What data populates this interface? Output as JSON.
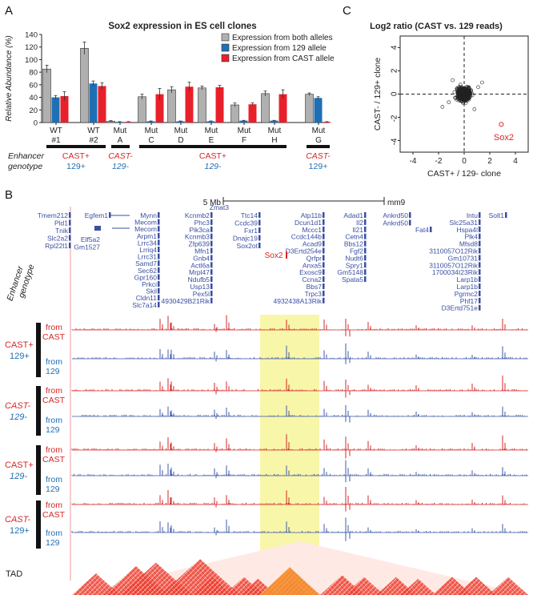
{
  "panel_labels": {
    "a": "A",
    "b": "B",
    "c": "C"
  },
  "colors": {
    "both": "#b0b0b0",
    "allele129": "#1f6fb4",
    "cast": "#e8202a",
    "track_cast": "#d62728",
    "track_129": "#3f5aa8",
    "gene_blue": "#3a4fa0",
    "sox2": "#d62728",
    "highlight": "#f7f49a"
  },
  "chart_data": [
    {
      "type": "bar",
      "title": "Sox2 expression in ES cell clones",
      "ylabel": "Relative Abundance (%)",
      "ylim": [
        0,
        140
      ],
      "yticks": [
        0,
        20,
        40,
        60,
        80,
        100,
        120,
        140
      ],
      "categories": [
        {
          "label": "WT",
          "sub": "#1"
        },
        {
          "label": "WT",
          "sub": "#2"
        },
        {
          "label": "Mut",
          "sub": "A"
        },
        {
          "label": "Mut",
          "sub": "C"
        },
        {
          "label": "Mut",
          "sub": "D"
        },
        {
          "label": "Mut",
          "sub": "E"
        },
        {
          "label": "Mut",
          "sub": "F"
        },
        {
          "label": "Mut",
          "sub": "H"
        },
        {
          "label": "Mut",
          "sub": "G"
        }
      ],
      "series": [
        {
          "name": "Expression from both alleles",
          "key": "both",
          "values": [
            85,
            118,
            2,
            41,
            52,
            55,
            28,
            46,
            45
          ],
          "errors": [
            6,
            10,
            1,
            4,
            5,
            3,
            3,
            4,
            2
          ]
        },
        {
          "name": "Expression from 129 allele",
          "key": "allele129",
          "values": [
            40,
            62,
            1,
            2,
            2,
            2,
            3,
            3,
            39
          ],
          "errors": [
            3,
            4,
            0.5,
            0.5,
            0.5,
            0.5,
            0.5,
            0.5,
            2
          ]
        },
        {
          "name": "Expression from CAST allele",
          "key": "cast",
          "values": [
            42,
            58,
            1,
            45,
            57,
            56,
            29,
            45,
            1
          ],
          "errors": [
            7,
            5,
            0.5,
            9,
            7,
            3,
            2,
            7,
            0.5
          ]
        }
      ],
      "enhancer_label": [
        "Enhancer",
        "genotype"
      ],
      "genotype_groups": [
        {
          "top": "CAST+",
          "bottom": "129+",
          "italic": false
        },
        {
          "top": "CAST-",
          "bottom": "129-",
          "italic": true
        },
        {
          "top": "CAST+",
          "bottom": "129-",
          "italic_bottom": true
        },
        {
          "top": "CAST-",
          "bottom": "129+",
          "italic_top": true
        }
      ]
    },
    {
      "type": "scatter",
      "title": "Log2 ratio (CAST vs. 129 reads)",
      "xlabel": "CAST+ / 129- clone",
      "ylabel": "CAST- / 129+ clone",
      "xlim": [
        -5,
        5
      ],
      "ylim": [
        -5,
        5
      ],
      "xticks": [
        -4,
        -2,
        0,
        2,
        4
      ],
      "yticks": [
        -4,
        -2,
        0,
        2,
        4
      ],
      "highlight_point": {
        "label": "Sox2",
        "x": 2.9,
        "y": -2.6
      }
    }
  ],
  "browser": {
    "scale_label": "5 Mb",
    "assembly": "mm9",
    "sox2_label": "Sox2",
    "genes_col1": [
      "Tmem212",
      "Pld1",
      "Tnik",
      "Slc2a2",
      "Rpl22l1"
    ],
    "genes_col2": [
      "Egfem1",
      "Elf5a2",
      "Gm1527"
    ],
    "genes_col3": [
      "Mynn",
      "Mecom",
      "Mecom",
      "Arpm1",
      "Lrrc34",
      "Lrriq4",
      "Lrrc31",
      "Samd7",
      "Sec62",
      "Gpr160",
      "Prkci",
      "Skil",
      "Cldn11",
      "Slc7a14"
    ],
    "genes_col4": [
      "Kcnmb2",
      "Phc3",
      "Pik3ca",
      "Kcnmb3",
      "Zfp639",
      "Mfn1",
      "Gnb4",
      "Actl6a",
      "Mrpl47",
      "Ndufb5",
      "Usp13",
      "Pex5l",
      "4930429B21Rik"
    ],
    "genes_col5": [
      "Zmat3"
    ],
    "genes_col6": [
      "Ttc14",
      "Ccdc39",
      "Fxr1",
      "Dnajc19",
      "Sox2ot"
    ],
    "genes_col7": [
      "Atp11b",
      "Dcun1d1",
      "Mccc1",
      "Ccdc144b",
      "Acad9",
      "D3Ertd254e",
      "Qrfpr",
      "Anxa5",
      "Exosc9",
      "Ccna2",
      "Bbs7",
      "Trpc3",
      "4932438A13Rik"
    ],
    "genes_col8": [
      "Adad1",
      "Il2",
      "Il21",
      "Cetn4",
      "Bbs12",
      "Fgf2",
      "Nudt6",
      "Spry1",
      "Gm5148",
      "Spata5"
    ],
    "genes_col9": [
      "Ankrd50",
      "Ankrd50",
      "Fat4"
    ],
    "genes_col10": [
      "Intu",
      "Slc25a31",
      "Hspa4l",
      "Plk4",
      "Mfsd8",
      "3110057O12Rik",
      "Gm10731",
      "3110057O12Rik",
      "1700034I23Rik",
      "Larp1b",
      "Larp1b",
      "Pgrmc2",
      "Phf17",
      "D3Ertd751e"
    ],
    "genes_col11": [
      "Solt1"
    ],
    "enhancer_label": [
      "Enhancer",
      "genotype"
    ],
    "track_groups": [
      {
        "top": "CAST+",
        "bottom": "129+",
        "italic_top": false,
        "italic_bottom": false
      },
      {
        "top": "CAST-",
        "bottom": "129-",
        "italic_top": true,
        "italic_bottom": true
      },
      {
        "top": "CAST+",
        "bottom": "129-",
        "italic_top": false,
        "italic_bottom": true
      },
      {
        "top": "CAST-",
        "bottom": "129+",
        "italic_top": true,
        "italic_bottom": false
      }
    ],
    "from_cast": [
      "from",
      "CAST"
    ],
    "from_129": [
      "from",
      "129"
    ],
    "tad_label": "TAD"
  }
}
